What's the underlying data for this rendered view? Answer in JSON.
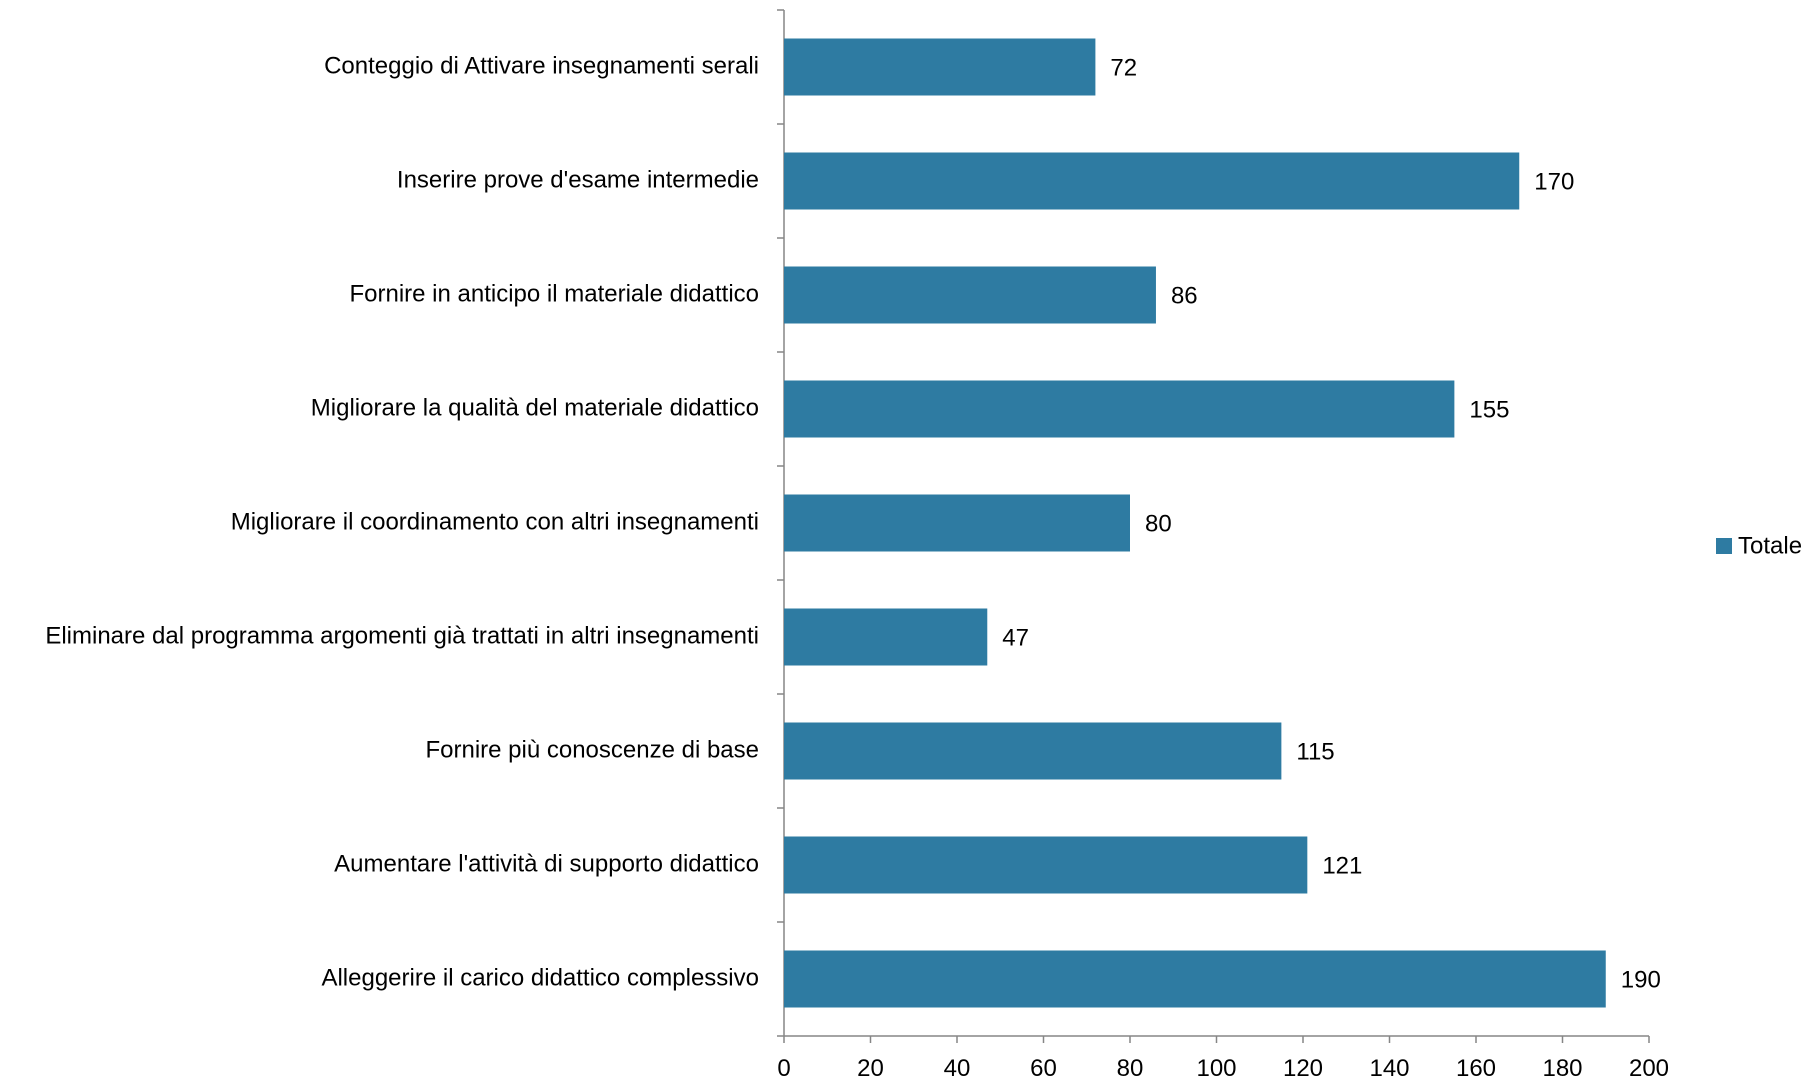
{
  "chart_data": {
    "type": "bar",
    "orientation": "horizontal",
    "categories": [
      "Conteggio di Attivare insegnamenti serali",
      "Inserire prove d'esame intermedie",
      "Fornire in anticipo il materiale didattico",
      "Migliorare la qualità del materiale didattico",
      "Migliorare il coordinamento con altri insegnamenti",
      "Eliminare dal programma argomenti già trattati in altri insegnamenti",
      "Fornire più conoscenze di base",
      "Aumentare l'attività di supporto didattico",
      "Alleggerire il carico didattico complessivo"
    ],
    "series": [
      {
        "name": "Totale",
        "values": [
          72,
          170,
          86,
          155,
          80,
          47,
          115,
          121,
          190
        ],
        "color": "#2E7BA2"
      }
    ],
    "xlim": [
      0,
      200
    ],
    "xticks": [
      "0",
      "20",
      "40",
      "60",
      "80",
      "100",
      "120",
      "140",
      "160",
      "180",
      "200"
    ],
    "title": "",
    "xlabel": "",
    "ylabel": "",
    "grid": false,
    "legend": {
      "position": "right",
      "entries": [
        "Totale"
      ]
    },
    "data_labels": true
  }
}
